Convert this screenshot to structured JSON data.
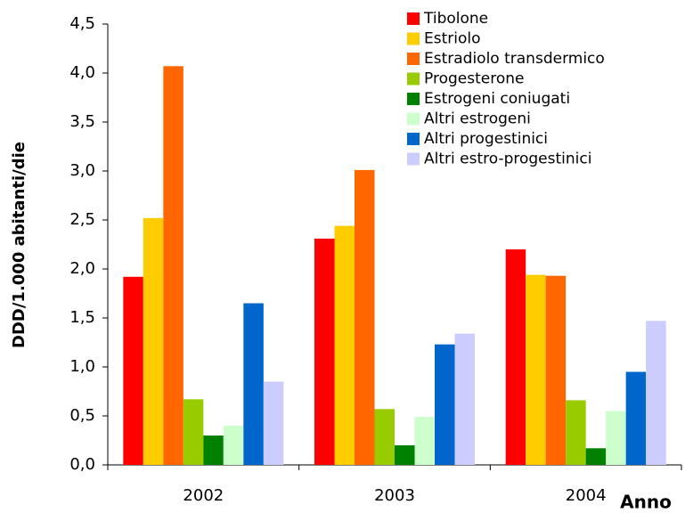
{
  "chart_data": {
    "type": "bar",
    "y_label": "DDD/1.000 abitanti/die",
    "x_label": "Anno",
    "categories": [
      "2002",
      "2003",
      "2004"
    ],
    "series": [
      {
        "name": "Tibolone",
        "color": "#ff0000",
        "values": [
          1.92,
          2.31,
          2.2
        ]
      },
      {
        "name": "Estriolo",
        "color": "#ffcc00",
        "values": [
          2.52,
          2.44,
          1.94
        ]
      },
      {
        "name": "Estradiolo transdermico",
        "color": "#ff6600",
        "values": [
          4.07,
          3.01,
          1.93
        ]
      },
      {
        "name": "Progesterone",
        "color": "#99cc00",
        "values": [
          0.67,
          0.57,
          0.66
        ]
      },
      {
        "name": "Estrogeni coniugati",
        "color": "#008000",
        "values": [
          0.3,
          0.2,
          0.17
        ]
      },
      {
        "name": "Altri estrogeni",
        "color": "#ccffcc",
        "values": [
          0.4,
          0.49,
          0.55
        ]
      },
      {
        "name": "Altri progestinici",
        "color": "#0066cc",
        "values": [
          1.65,
          1.23,
          0.95
        ]
      },
      {
        "name": "Altri estro-progestinici",
        "color": "#ccccff",
        "values": [
          0.85,
          1.34,
          1.47
        ]
      }
    ],
    "ylim": [
      0,
      4.5
    ],
    "yticks": [
      {
        "value": 0,
        "label": "0,0"
      },
      {
        "value": 0.5,
        "label": "0,5"
      },
      {
        "value": 1,
        "label": "1,0"
      },
      {
        "value": 1.5,
        "label": "1,5"
      },
      {
        "value": 2,
        "label": "2,0"
      },
      {
        "value": 2.5,
        "label": "2,5"
      },
      {
        "value": 3,
        "label": "3,0"
      },
      {
        "value": 3.5,
        "label": "3,5"
      },
      {
        "value": 4,
        "label": "4,0"
      },
      {
        "value": 4.5,
        "label": "4,5"
      }
    ],
    "grid": false,
    "legend": "top-right"
  }
}
